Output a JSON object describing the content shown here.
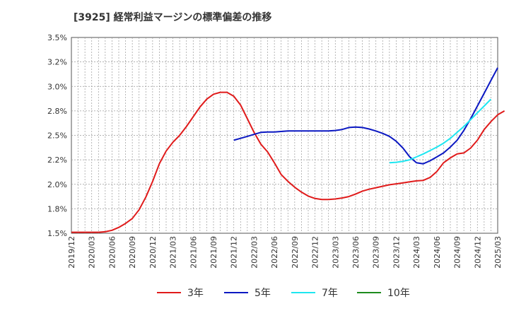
{
  "chart_data": {
    "type": "line",
    "title": "[3925]  経常利益マージンの標準偏差の推移",
    "xlabel": "",
    "ylabel": "",
    "ylim": [
      1.5,
      3.5
    ],
    "y_ticks": [
      "3.5%",
      "3.2%",
      "3.0%",
      "2.8%",
      "2.5%",
      "2.2%",
      "2.0%",
      "1.8%",
      "1.5%"
    ],
    "x_ticks": [
      "2019/12",
      "2020/03",
      "2020/06",
      "2020/09",
      "2020/12",
      "2021/03",
      "2021/06",
      "2021/09",
      "2021/12",
      "2022/03",
      "2022/06",
      "2022/09",
      "2022/12",
      "2023/03",
      "2023/06",
      "2023/09",
      "2023/12",
      "2024/03",
      "2024/06",
      "2024/09",
      "2024/12",
      "2025/03"
    ],
    "grid": true,
    "legend_position": "bottom",
    "series": [
      {
        "name": "3年",
        "color": "#e01b1b",
        "start": "2019/12",
        "values": [
          1.51,
          1.51,
          1.51,
          1.51,
          1.51,
          1.515,
          1.53,
          1.56,
          1.6,
          1.65,
          1.74,
          1.87,
          2.03,
          2.21,
          2.34,
          2.43,
          2.5,
          2.59,
          2.69,
          2.79,
          2.87,
          2.92,
          2.94,
          2.94,
          2.9,
          2.81,
          2.67,
          2.53,
          2.41,
          2.33,
          2.22,
          2.1,
          2.03,
          1.97,
          1.92,
          1.88,
          1.855,
          1.845,
          1.845,
          1.85,
          1.86,
          1.875,
          1.9,
          1.93,
          1.95,
          1.965,
          1.98,
          1.995,
          2.005,
          2.015,
          2.025,
          2.035,
          2.04,
          2.07,
          2.13,
          2.22,
          2.27,
          2.31,
          2.32,
          2.37,
          2.45,
          2.56,
          2.64,
          2.71,
          2.75
        ]
      },
      {
        "name": "5年",
        "color": "#0b18c2",
        "start": "2021/12",
        "values": [
          2.45,
          2.47,
          2.49,
          2.51,
          2.53,
          2.535,
          2.535,
          2.54,
          2.545,
          2.545,
          2.545,
          2.545,
          2.545,
          2.545,
          2.545,
          2.55,
          2.56,
          2.58,
          2.585,
          2.58,
          2.565,
          2.545,
          2.52,
          2.49,
          2.44,
          2.37,
          2.28,
          2.22,
          2.21,
          2.24,
          2.28,
          2.32,
          2.38,
          2.45,
          2.55,
          2.67,
          2.8,
          2.93,
          3.06,
          3.19
        ]
      },
      {
        "name": "7年",
        "color": "#1ee6f0",
        "start": "2023/11",
        "values": [
          2.22,
          2.225,
          2.235,
          2.25,
          2.28,
          2.31,
          2.345,
          2.38,
          2.42,
          2.47,
          2.53,
          2.59,
          2.66,
          2.73,
          2.8,
          2.87
        ]
      },
      {
        "name": "10年",
        "color": "#1e8c1e",
        "start": "2024/12",
        "values": []
      }
    ]
  }
}
